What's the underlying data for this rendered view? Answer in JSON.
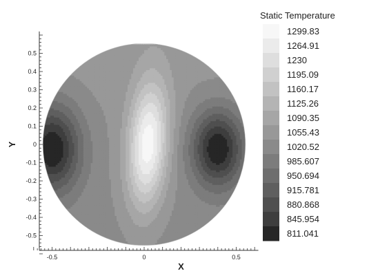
{
  "chart_data": {
    "type": "heatmap",
    "title": "",
    "xlabel": "X",
    "ylabel": "Y",
    "xlim": [
      -0.6,
      0.6
    ],
    "ylim": [
      -0.6,
      0.6
    ],
    "x_tick_labels": [
      "-0.5",
      "0",
      "0.5"
    ],
    "y_tick_labels": [
      "0.5",
      "0.4",
      "0.3",
      "0.2",
      "0.1",
      "0",
      "-0.1",
      "-0.2",
      "-0.3",
      "-0.4",
      "-0.5"
    ],
    "legend": {
      "title": "Static Temperature",
      "placement": "right",
      "levels": [
        "1299.83",
        "1264.91",
        "1230",
        "1195.09",
        "1160.17",
        "1125.26",
        "1090.35",
        "1055.43",
        "1020.52",
        "985.607",
        "950.694",
        "915.781",
        "880.868",
        "845.954",
        "811.041"
      ],
      "colors": [
        "#f7f7f7",
        "#ebebeb",
        "#dedede",
        "#d0d0d0",
        "#c2c2c2",
        "#b4b4b4",
        "#a6a6a6",
        "#989898",
        "#8a8a8a",
        "#7c7c7c",
        "#6e6e6e",
        "#5f5f5f",
        "#4f4f4f",
        "#3e3e3e",
        "#262626"
      ]
    },
    "domain": "circle of radius 0.55 centered at (0, 0)",
    "field": "grayscale contour plot; a vertical hot band near x = 0 to 0.05 and cool regions near x = -0.5 and x = 0.4 at y = 0"
  }
}
